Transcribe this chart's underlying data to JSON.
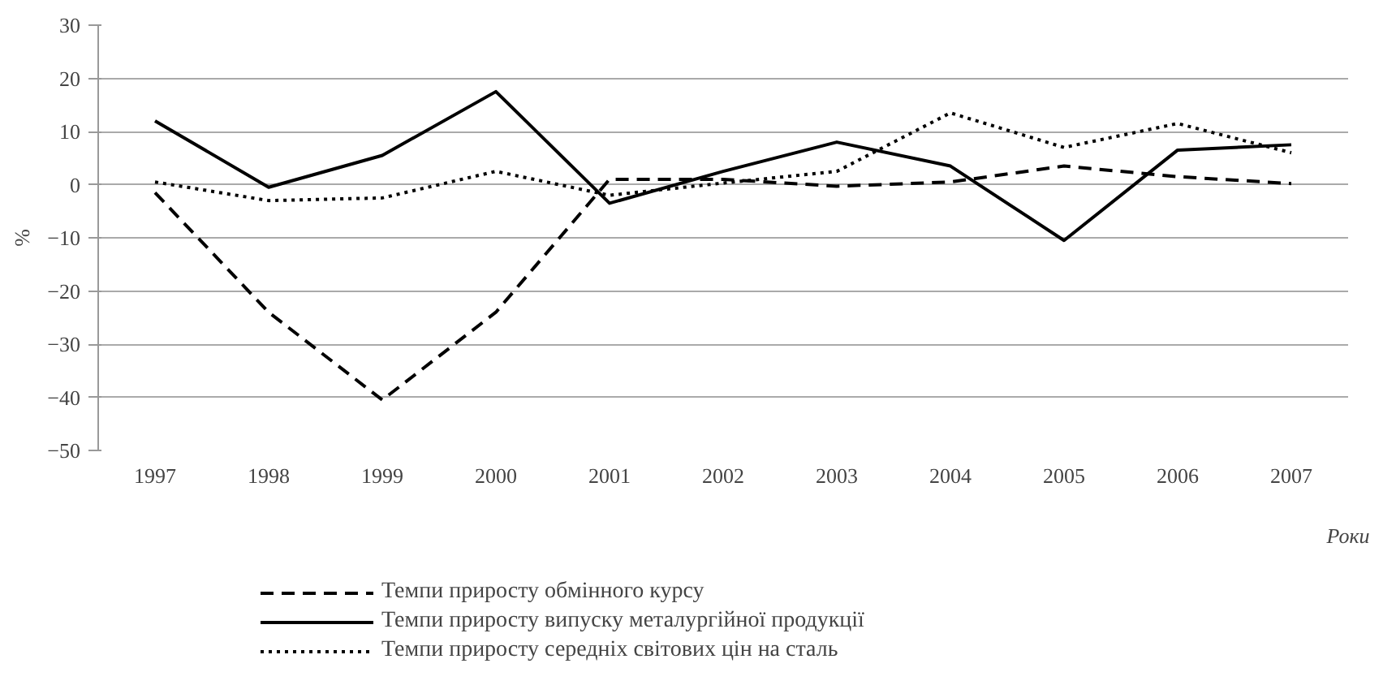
{
  "chart_data": {
    "type": "line",
    "ylabel": "%",
    "xlabel": "Роки",
    "categories": [
      "1997",
      "1998",
      "1999",
      "2000",
      "2001",
      "2002",
      "2003",
      "2004",
      "2005",
      "2006",
      "2007"
    ],
    "ylim": [
      -50,
      30
    ],
    "yticks": [
      -50,
      -40,
      -30,
      -20,
      -10,
      0,
      10,
      20,
      30
    ],
    "grid": "y",
    "legend": "bottom",
    "series": [
      {
        "name": "Темпи приросту обмінного курсу",
        "color": "#000000",
        "line_style": "dashed",
        "values": [
          -1.5,
          -24,
          -40.5,
          -24,
          1,
          1,
          -0.3,
          0.5,
          3.5,
          1.5,
          0.2
        ]
      },
      {
        "name": "Темпи приросту випуску металургійної продукції",
        "color": "#000000",
        "line_style": "solid",
        "values": [
          12,
          -0.5,
          5.5,
          17.5,
          -3.5,
          2.5,
          8,
          3.5,
          -10.5,
          6.5,
          7.5
        ]
      },
      {
        "name": "Темпи приросту середніх світових цін на сталь",
        "color": "#000000",
        "line_style": "dotted",
        "values": [
          0.5,
          -3,
          -2.5,
          2.5,
          -2,
          0.3,
          2.5,
          13.5,
          7,
          11.5,
          6
        ]
      }
    ]
  }
}
